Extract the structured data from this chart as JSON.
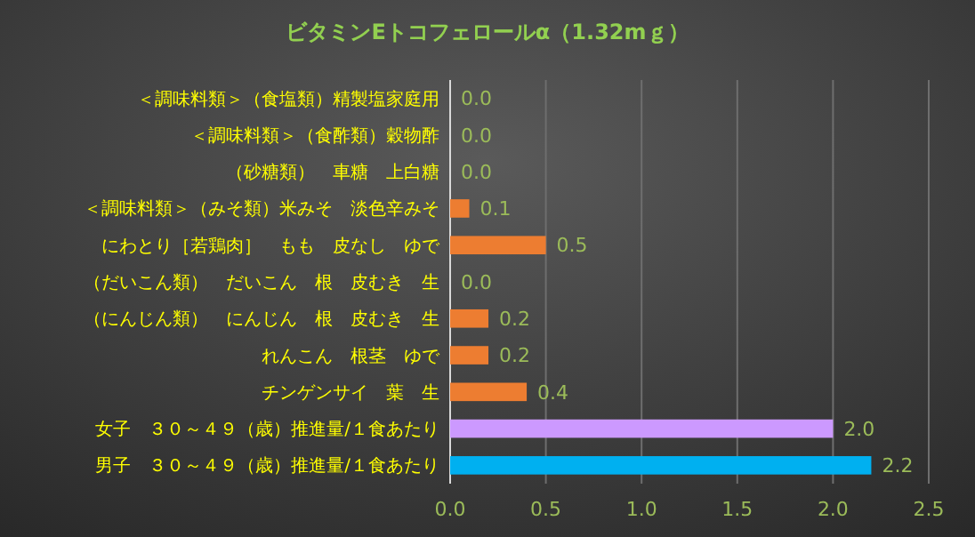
{
  "chart_data": {
    "type": "bar",
    "orientation": "horizontal",
    "title": "ビタミンEトコフェロールα（1.32mｇ）",
    "categories": [
      "＜調味料類＞（食塩類）精製塩家庭用",
      "＜調味料類＞（食酢類）穀物酢",
      "（砂糖類）　車糖　上白糖",
      "＜調味料類＞（みそ類）米みそ　淡色辛みそ",
      "にわとり［若鶏肉］　もも　皮なし　ゆで",
      "（だいこん類）　だいこん　根　皮むき　生",
      "（にんじん類）　にんじん　根　皮むき　生",
      "れんこん　根茎　ゆで",
      "チンゲンサイ　葉　生",
      "女子　３０～４９（歳）推進量/１食あたり",
      "男子　３０～４９（歳）推進量/１食あたり"
    ],
    "values": [
      0,
      0,
      0,
      0.1,
      0.5,
      0,
      0.2,
      0.2,
      0.4,
      2.0,
      2.2
    ],
    "value_labels": [
      "0.0",
      "0.0",
      "0.0",
      "0.1",
      "0.5",
      "0.0",
      "0.2",
      "0.2",
      "0.4",
      "2.0",
      "2.2"
    ],
    "colors": [
      "#ed7d31",
      "#ed7d31",
      "#ed7d31",
      "#ed7d31",
      "#ed7d31",
      "#ed7d31",
      "#ed7d31",
      "#ed7d31",
      "#ed7d31",
      "#cc99ff",
      "#00b0f0"
    ],
    "xlim": [
      0,
      2.5
    ],
    "xticks": [
      {
        "value": 0,
        "label": "0.0"
      },
      {
        "value": 0.5,
        "label": "0.5"
      },
      {
        "value": 1,
        "label": "1.0"
      },
      {
        "value": 1.5,
        "label": "1.5"
      },
      {
        "value": 2,
        "label": "2.0"
      },
      {
        "value": 2.5,
        "label": "2.5"
      }
    ],
    "grid": "x"
  }
}
